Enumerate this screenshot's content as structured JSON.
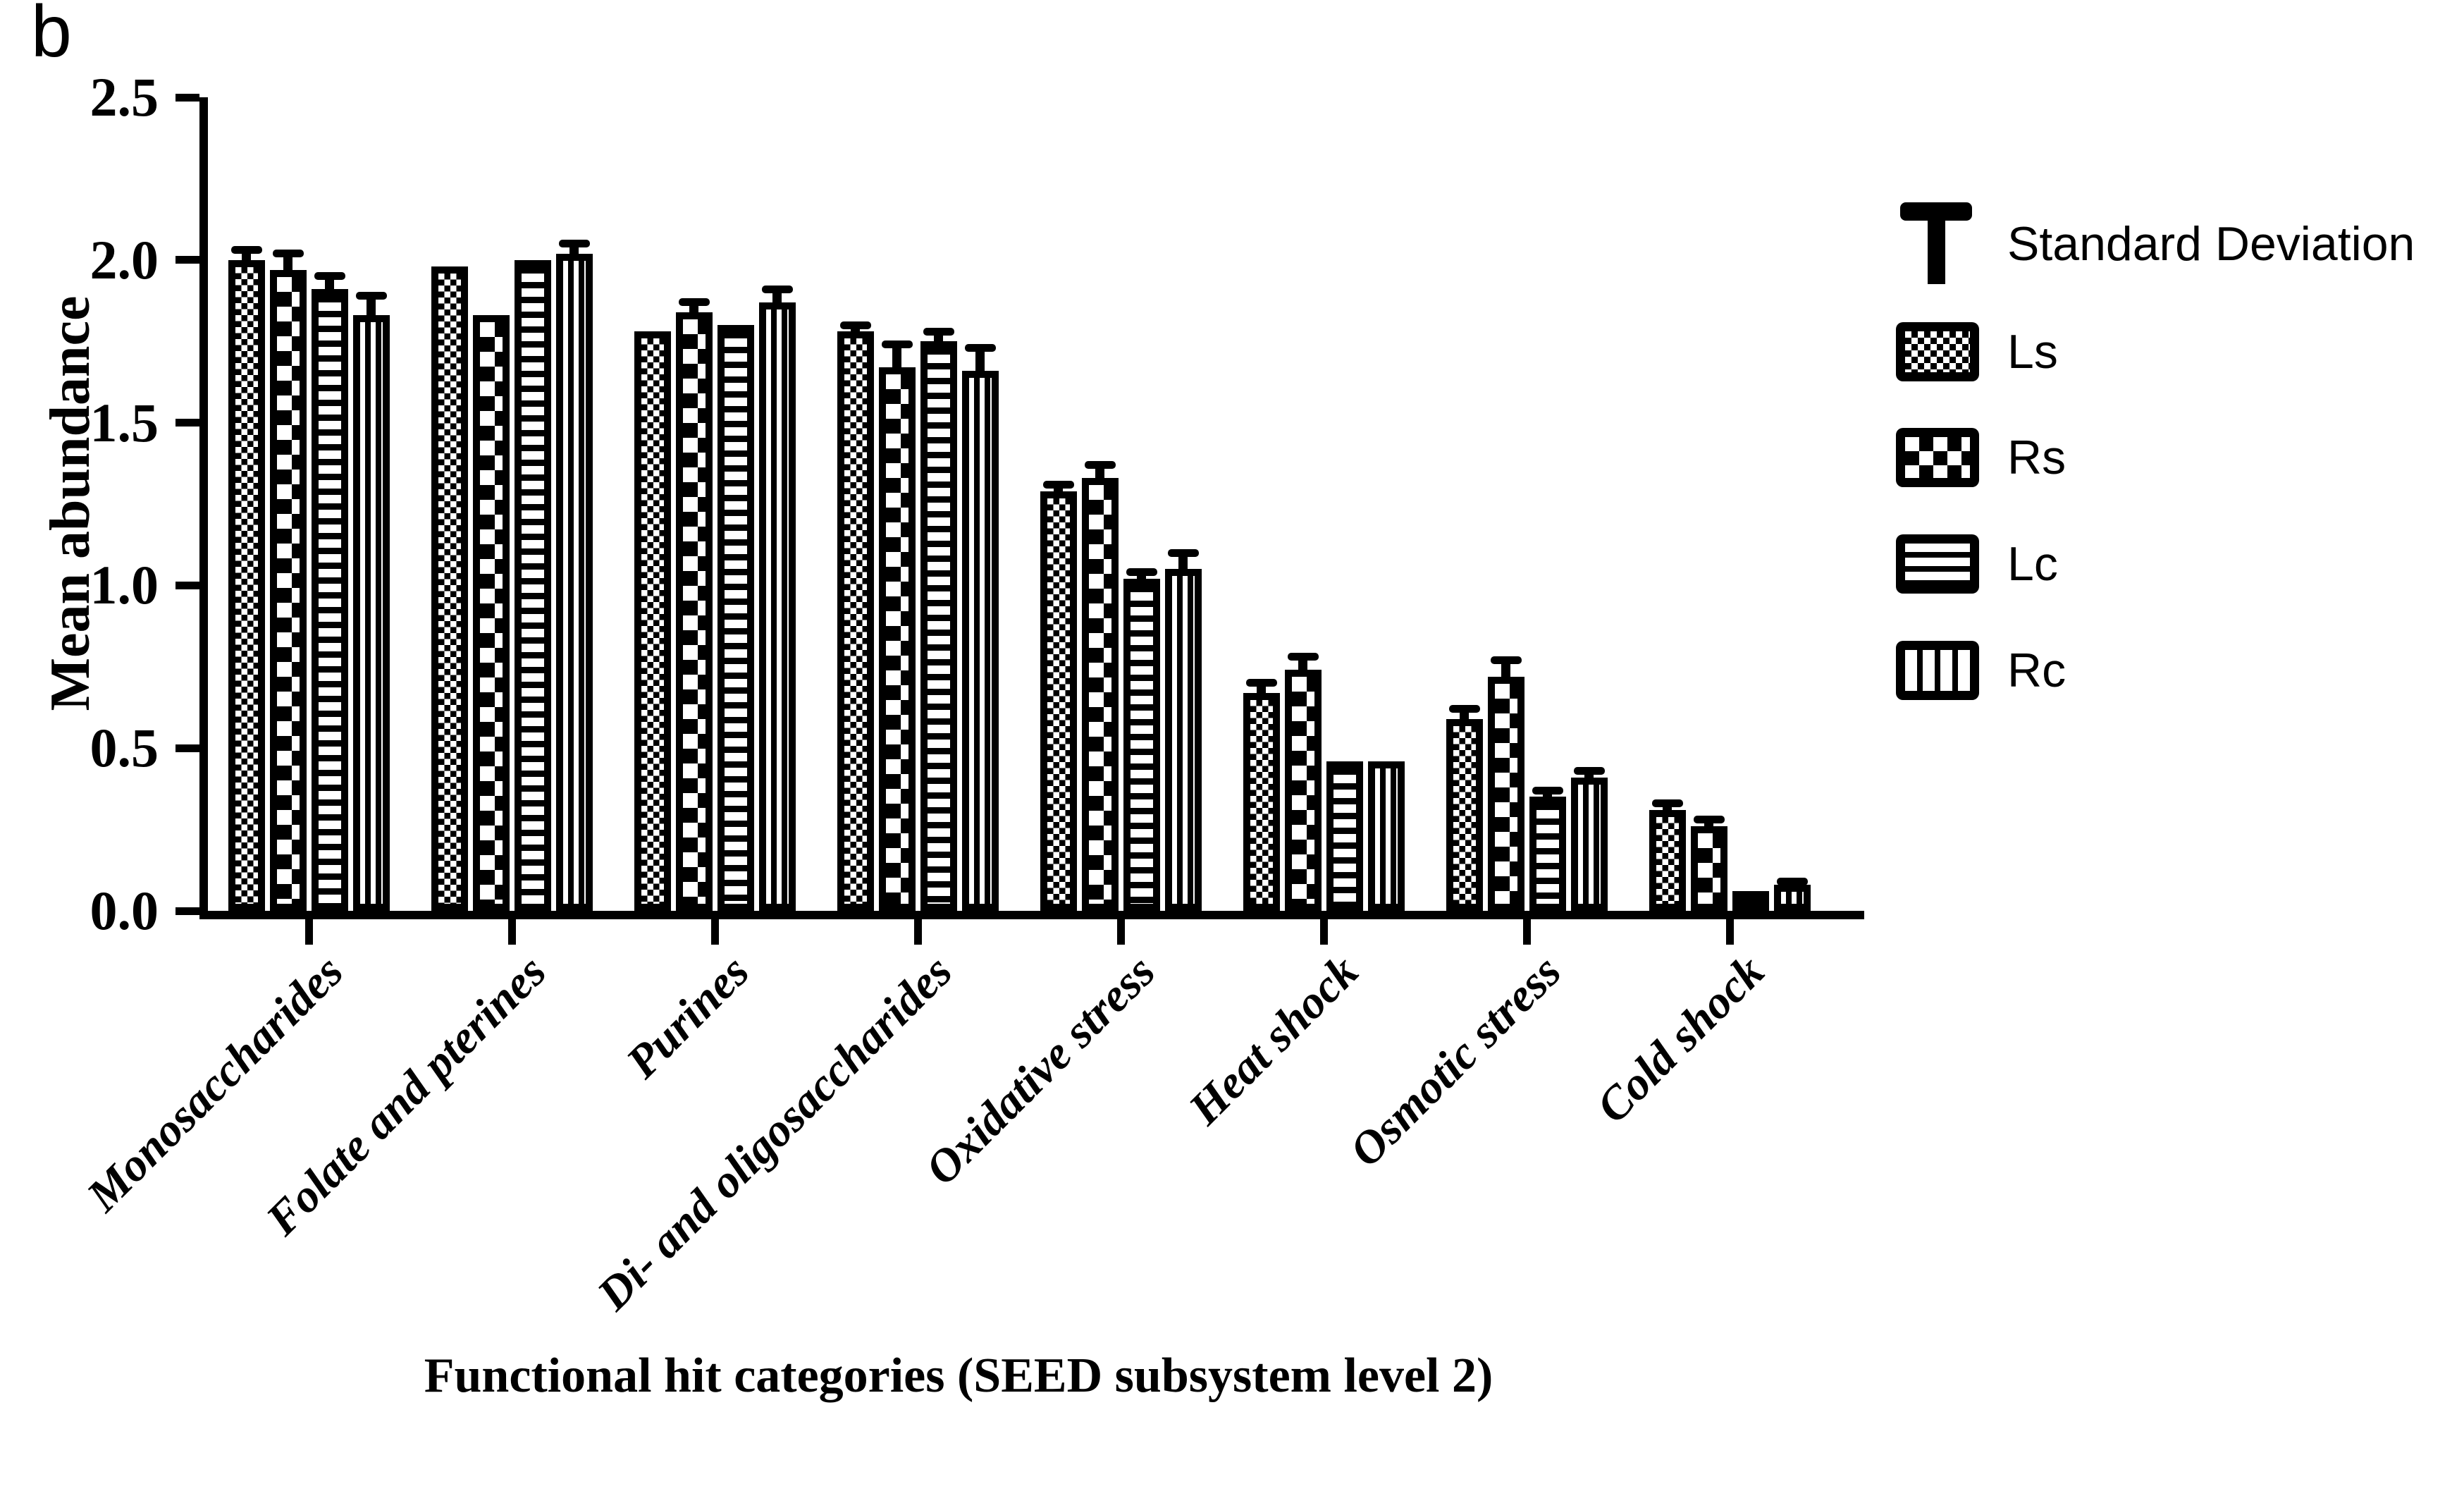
{
  "panel_label": "b",
  "colors": {
    "foreground": "#000000",
    "background": "#ffffff"
  },
  "y_axis": {
    "title": "Mean abundance",
    "tick_labels": [
      "2.5",
      "2.0",
      "1.5",
      "1.0",
      "0.5",
      "0.0"
    ]
  },
  "x_axis": {
    "title": "Functional hit categories (SEED subsystem level 2)"
  },
  "legend": {
    "sd_label": "Standard Deviation",
    "entries": [
      {
        "label": "Ls",
        "pattern": "fine-checker"
      },
      {
        "label": "Rs",
        "pattern": "coarse-checker"
      },
      {
        "label": "Lc",
        "pattern": "h-stripes"
      },
      {
        "label": "Rc",
        "pattern": "v-stripes"
      }
    ]
  },
  "chart_data": {
    "type": "bar",
    "title": "",
    "xlabel": "Functional hit categories (SEED subsystem level 2)",
    "ylabel": "Mean abundance",
    "ylim": [
      0,
      2.5
    ],
    "yticks": [
      2.5,
      2.0,
      1.5,
      1.0,
      0.5,
      0.0
    ],
    "grid": false,
    "legend_position": "upper right",
    "error_bars": "standard deviation, upper only, with caps",
    "categories": [
      "Monosaccharides",
      "Folate and pterines",
      "Purines",
      "Di- and oligosaccharides",
      "Oxidative stress",
      "Heat shock",
      "Osmotic stress",
      "Cold shock"
    ],
    "series": [
      {
        "name": "Ls",
        "pattern": "fine-checker",
        "values": [
          2.0,
          1.98,
          1.78,
          1.78,
          1.29,
          0.67,
          0.59,
          0.31
        ],
        "sd": [
          0.03,
          0.0,
          0.0,
          0.02,
          0.02,
          0.03,
          0.03,
          0.02
        ]
      },
      {
        "name": "Rs",
        "pattern": "coarse-checker",
        "values": [
          1.97,
          1.83,
          1.84,
          1.67,
          1.33,
          0.74,
          0.72,
          0.26
        ],
        "sd": [
          0.05,
          0.0,
          0.03,
          0.07,
          0.04,
          0.04,
          0.05,
          0.02
        ]
      },
      {
        "name": "Lc",
        "pattern": "h-stripes",
        "values": [
          1.91,
          2.0,
          1.8,
          1.75,
          1.02,
          0.46,
          0.35,
          0.06
        ],
        "sd": [
          0.04,
          0.0,
          0.0,
          0.03,
          0.02,
          0.0,
          0.02,
          0.0
        ]
      },
      {
        "name": "Rc",
        "pattern": "v-stripes",
        "values": [
          1.83,
          2.02,
          1.87,
          1.66,
          1.05,
          0.46,
          0.41,
          0.08
        ],
        "sd": [
          0.06,
          0.03,
          0.04,
          0.07,
          0.05,
          0.0,
          0.02,
          0.01
        ]
      }
    ]
  }
}
